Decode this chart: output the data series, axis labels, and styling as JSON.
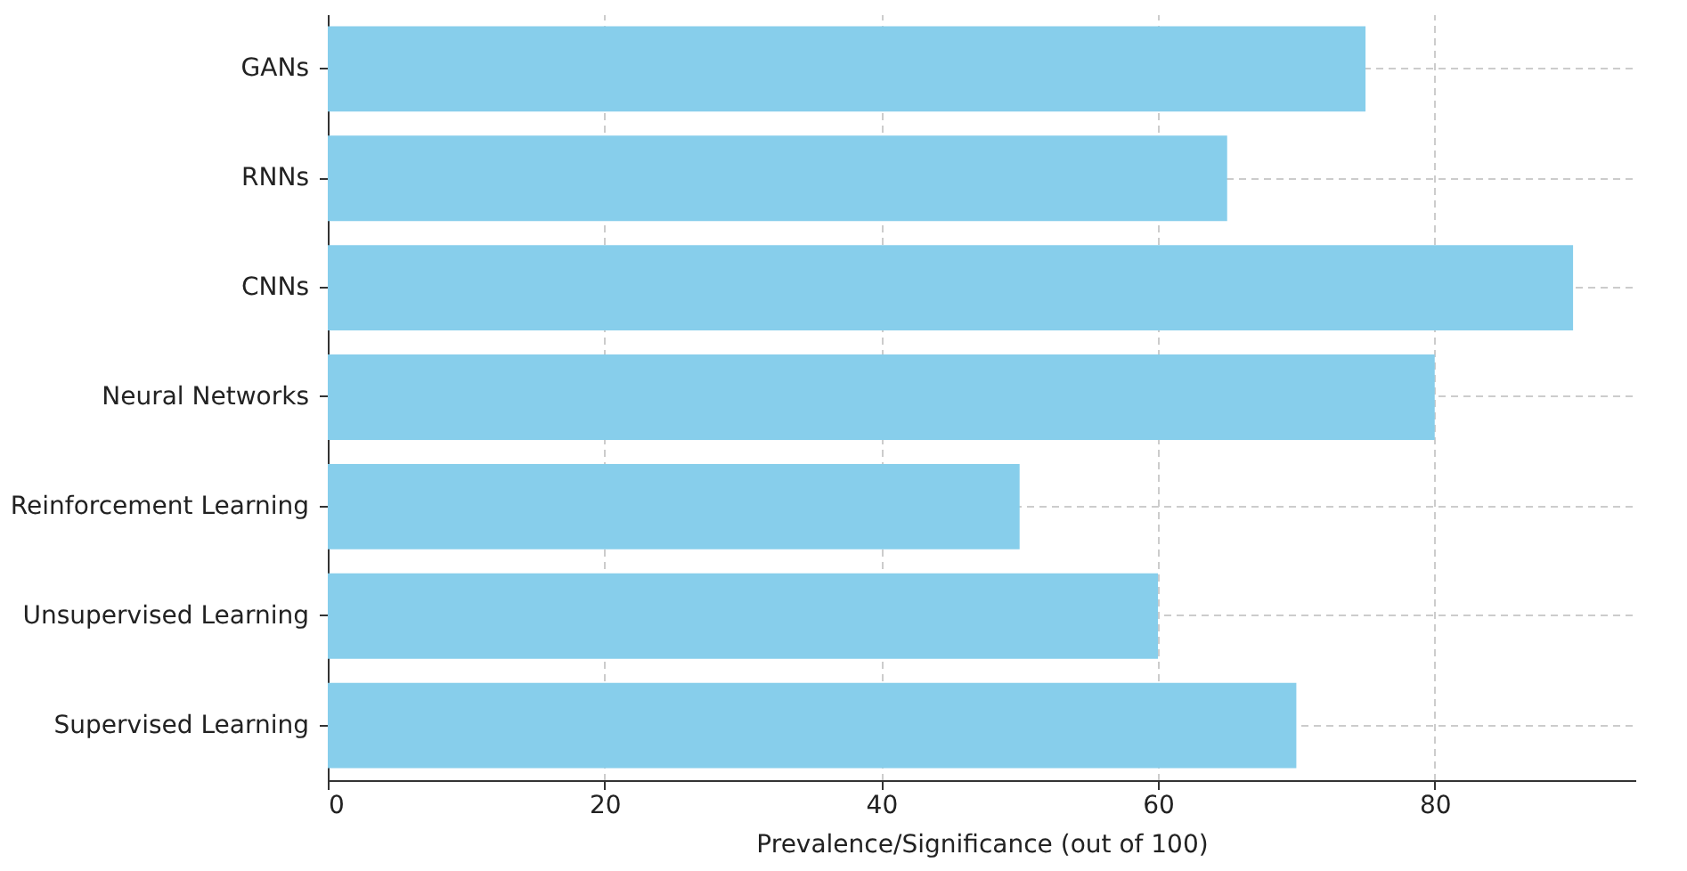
{
  "chart_data": {
    "type": "bar",
    "orientation": "horizontal",
    "xlabel": "Prevalence/Significance (out of 100)",
    "categories": [
      "GANs",
      "RNNs",
      "CNNs",
      "Neural Networks",
      "Reinforcement Learning",
      "Unsupervised Learning",
      "Supervised Learning"
    ],
    "values": [
      75,
      65,
      90,
      80,
      50,
      60,
      70
    ],
    "color": "#87ceeb",
    "xlim": [
      0,
      94.5
    ],
    "xticks": [
      0,
      20,
      40,
      60,
      80
    ],
    "grid": true
  }
}
